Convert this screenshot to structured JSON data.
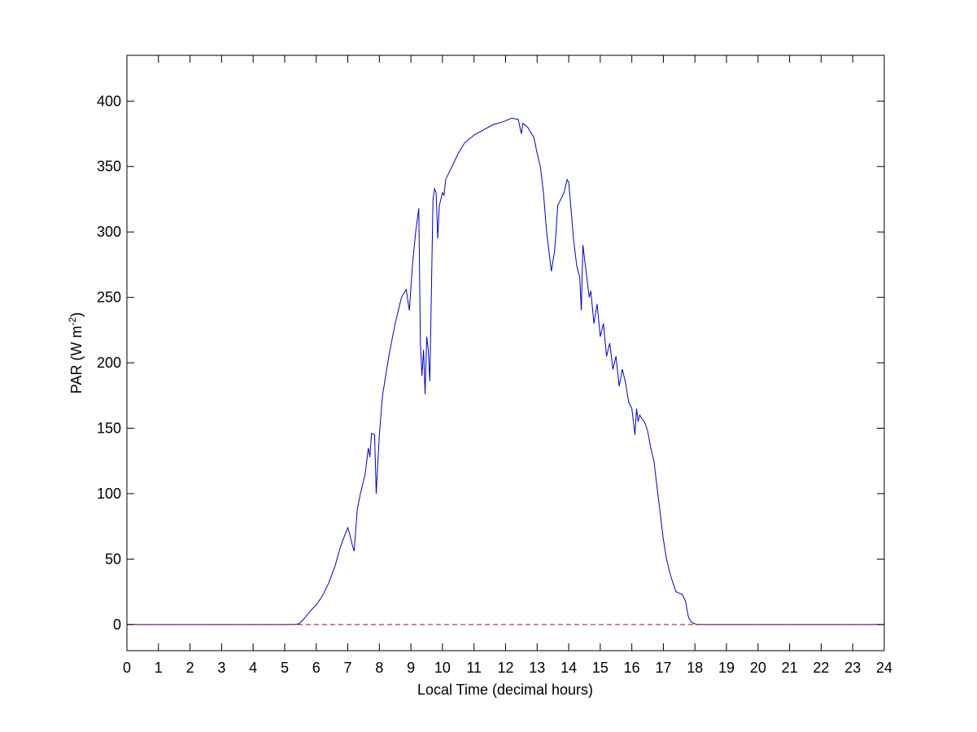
{
  "chart_data": {
    "type": "line",
    "xlabel": "Local Time (decimal hours)",
    "ylabel": {
      "prefix": "PAR (W m",
      "superscript": "-2",
      "suffix": ")"
    },
    "xlim": [
      0,
      24
    ],
    "ylim": [
      -20,
      435
    ],
    "xticks": [
      0,
      1,
      2,
      3,
      4,
      5,
      6,
      7,
      8,
      9,
      10,
      11,
      12,
      13,
      14,
      15,
      16,
      17,
      18,
      19,
      20,
      21,
      22,
      23,
      24
    ],
    "yticks": [
      0,
      50,
      100,
      150,
      200,
      250,
      300,
      350,
      400
    ],
    "grid": false,
    "series": [
      {
        "color": "#0000cc",
        "style": "solid",
        "x": [
          0,
          5.0,
          5.3,
          5.45,
          5.6,
          5.8,
          6.0,
          6.2,
          6.4,
          6.6,
          6.75,
          6.9,
          7.0,
          7.05,
          7.15,
          7.2,
          7.3,
          7.4,
          7.55,
          7.65,
          7.7,
          7.75,
          7.85,
          7.9,
          8.0,
          8.1,
          8.3,
          8.5,
          8.7,
          8.85,
          8.95,
          9.05,
          9.15,
          9.25,
          9.3,
          9.35,
          9.4,
          9.45,
          9.5,
          9.55,
          9.6,
          9.7,
          9.75,
          9.8,
          9.85,
          9.9,
          10.0,
          10.05,
          10.1,
          10.2,
          10.3,
          10.5,
          10.7,
          11.0,
          11.3,
          11.6,
          11.9,
          12.2,
          12.4,
          12.5,
          12.55,
          12.7,
          12.9,
          13.0,
          13.1,
          13.2,
          13.3,
          13.45,
          13.55,
          13.6,
          13.65,
          13.75,
          13.85,
          13.9,
          13.95,
          14.0,
          14.1,
          14.15,
          14.25,
          14.35,
          14.4,
          14.45,
          14.55,
          14.65,
          14.7,
          14.8,
          14.9,
          15.0,
          15.1,
          15.2,
          15.3,
          15.4,
          15.5,
          15.6,
          15.7,
          15.8,
          15.9,
          16.0,
          16.1,
          16.15,
          16.2,
          16.25,
          16.3,
          16.4,
          16.5,
          16.6,
          16.7,
          16.8,
          16.9,
          17.0,
          17.1,
          17.2,
          17.3,
          17.4,
          17.5,
          17.6,
          17.7,
          17.8,
          17.9,
          18.0,
          18.1,
          18.2,
          18.3,
          18.4,
          18.5,
          18.6,
          18.7,
          18.8,
          19.0,
          24
        ],
        "y": [
          0,
          0,
          0,
          0.5,
          4,
          10,
          15,
          22,
          32,
          45,
          58,
          68,
          74,
          70,
          60,
          56,
          88,
          100,
          115,
          135,
          128,
          146,
          145,
          100,
          145,
          175,
          205,
          230,
          250,
          256,
          240,
          275,
          300,
          318,
          215,
          190,
          210,
          176,
          220,
          210,
          186,
          325,
          333,
          330,
          295,
          320,
          330,
          328,
          340,
          345,
          350,
          360,
          368,
          374,
          378,
          382,
          384,
          387,
          386,
          375,
          383,
          380,
          372,
          360,
          350,
          330,
          300,
          270,
          285,
          300,
          320,
          325,
          330,
          335,
          340,
          338,
          310,
          295,
          275,
          265,
          240,
          290,
          270,
          250,
          255,
          230,
          245,
          220,
          230,
          205,
          215,
          195,
          205,
          182,
          195,
          185,
          170,
          165,
          145,
          165,
          155,
          160,
          158,
          155,
          148,
          135,
          125,
          105,
          85,
          65,
          50,
          40,
          32,
          25,
          24,
          23,
          18,
          5,
          1.5,
          0.5,
          0,
          0,
          0,
          0,
          0,
          0,
          0,
          0,
          0,
          0
        ]
      },
      {
        "color": "#cc0000",
        "style": "dashed",
        "x": [
          0,
          24
        ],
        "y": [
          0,
          0
        ]
      }
    ]
  }
}
